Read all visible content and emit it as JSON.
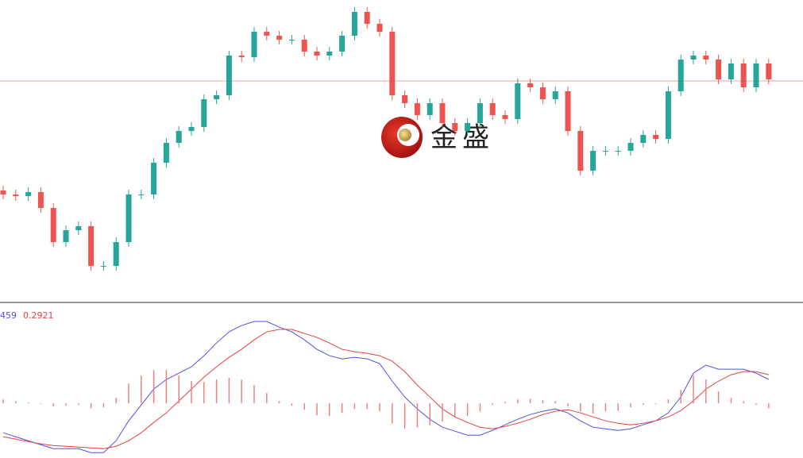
{
  "logo": {
    "text": "金盛"
  },
  "chart_data": [
    {
      "type": "candlestick",
      "ylim": [
        0,
        380
      ],
      "up_color": "#26a69a",
      "down_color": "#ef5350",
      "price_line": 278,
      "price_line_color": "#f4a38f",
      "open": [
        140,
        135,
        133,
        138,
        118,
        75,
        90,
        95,
        45,
        45,
        75,
        135,
        135,
        175,
        200,
        215,
        220,
        255,
        260,
        310,
        308,
        340,
        335,
        330,
        330,
        315,
        310,
        315,
        335,
        365,
        350,
        340,
        260,
        250,
        235,
        250,
        225,
        215,
        225,
        250,
        235,
        230,
        275,
        270,
        255,
        265,
        215,
        165,
        190,
        190,
        190,
        200,
        210,
        205,
        265,
        305,
        310,
        305,
        280,
        300,
        270,
        300
      ],
      "high": [
        146,
        141,
        144,
        144,
        124,
        96,
        101,
        101,
        51,
        81,
        141,
        141,
        181,
        206,
        221,
        226,
        261,
        266,
        316,
        316,
        346,
        346,
        341,
        336,
        336,
        321,
        321,
        341,
        371,
        371,
        356,
        346,
        266,
        256,
        256,
        256,
        231,
        231,
        256,
        256,
        241,
        281,
        281,
        276,
        271,
        271,
        221,
        196,
        196,
        196,
        206,
        216,
        216,
        271,
        311,
        316,
        316,
        311,
        306,
        306,
        306,
        306
      ],
      "low": [
        129,
        127,
        127,
        112,
        69,
        69,
        84,
        39,
        39,
        39,
        69,
        129,
        129,
        169,
        194,
        209,
        214,
        249,
        254,
        302,
        302,
        329,
        324,
        324,
        309,
        304,
        304,
        309,
        329,
        344,
        334,
        254,
        244,
        229,
        229,
        219,
        209,
        209,
        219,
        229,
        224,
        224,
        264,
        249,
        249,
        209,
        159,
        159,
        184,
        184,
        184,
        194,
        199,
        199,
        259,
        299,
        299,
        274,
        274,
        264,
        264,
        274
      ],
      "close": [
        135,
        133,
        138,
        118,
        75,
        90,
        95,
        45,
        45,
        75,
        135,
        135,
        175,
        200,
        215,
        220,
        255,
        260,
        310,
        308,
        340,
        335,
        330,
        330,
        315,
        310,
        315,
        335,
        365,
        350,
        340,
        260,
        250,
        235,
        250,
        225,
        215,
        225,
        250,
        235,
        230,
        275,
        270,
        255,
        265,
        215,
        165,
        190,
        190,
        190,
        200,
        210,
        205,
        265,
        305,
        310,
        305,
        280,
        300,
        270,
        300,
        280
      ]
    },
    {
      "type": "macd",
      "ylim": [
        -0.55,
        1.0
      ],
      "series": [
        {
          "label": "459",
          "color": "#5050e8",
          "style": "line",
          "values": [
            -0.296,
            -0.336,
            -0.376,
            -0.416,
            -0.456,
            -0.456,
            -0.456,
            -0.496,
            -0.496,
            -0.376,
            -0.176,
            -0.016,
            0.144,
            0.24,
            0.304,
            0.368,
            0.48,
            0.608,
            0.72,
            0.784,
            0.824,
            0.824,
            0.768,
            0.72,
            0.64,
            0.544,
            0.48,
            0.448,
            0.464,
            0.448,
            0.4,
            0.224,
            0.064,
            -0.056,
            -0.16,
            -0.24,
            -0.28,
            -0.32,
            -0.32,
            -0.272,
            -0.216,
            -0.16,
            -0.112,
            -0.08,
            -0.056,
            -0.096,
            -0.176,
            -0.24,
            -0.256,
            -0.272,
            -0.256,
            -0.216,
            -0.176,
            -0.096,
            0.064,
            0.304,
            0.384,
            0.344,
            0.344,
            0.344,
            0.304,
            0.24
          ]
        },
        {
          "label": "0.2921",
          "color": "#e84040",
          "style": "line",
          "values": [
            -0.336,
            -0.36,
            -0.384,
            -0.408,
            -0.424,
            -0.432,
            -0.44,
            -0.448,
            -0.456,
            -0.432,
            -0.376,
            -0.296,
            -0.192,
            -0.096,
            0.024,
            0.144,
            0.264,
            0.368,
            0.464,
            0.544,
            0.64,
            0.72,
            0.744,
            0.744,
            0.704,
            0.664,
            0.608,
            0.544,
            0.52,
            0.504,
            0.48,
            0.424,
            0.32,
            0.184,
            0.064,
            -0.056,
            -0.136,
            -0.192,
            -0.24,
            -0.256,
            -0.232,
            -0.2,
            -0.16,
            -0.112,
            -0.08,
            -0.064,
            -0.096,
            -0.136,
            -0.176,
            -0.2,
            -0.216,
            -0.2,
            -0.176,
            -0.136,
            -0.072,
            0.024,
            0.144,
            0.224,
            0.288,
            0.32,
            0.32,
            0.288
          ]
        },
        {
          "color": "#f08080",
          "style": "histogram",
          "values": [
            0.04,
            0.024,
            0.008,
            -0.008,
            -0.032,
            -0.024,
            -0.016,
            -0.048,
            -0.04,
            0.056,
            0.2,
            0.28,
            0.336,
            0.336,
            0.28,
            0.224,
            0.216,
            0.24,
            0.256,
            0.24,
            0.184,
            0.104,
            0.024,
            -0.024,
            -0.064,
            -0.12,
            -0.128,
            -0.096,
            -0.056,
            -0.056,
            -0.08,
            -0.2,
            -0.256,
            -0.24,
            -0.224,
            -0.184,
            -0.144,
            -0.128,
            -0.08,
            -0.016,
            0.016,
            0.04,
            0.048,
            0.032,
            0.024,
            -0.032,
            -0.08,
            -0.104,
            -0.08,
            -0.072,
            -0.04,
            -0.016,
            0,
            0.04,
            0.136,
            0.28,
            0.24,
            0.12,
            0.056,
            0.024,
            -0.016,
            -0.048
          ]
        }
      ]
    }
  ]
}
